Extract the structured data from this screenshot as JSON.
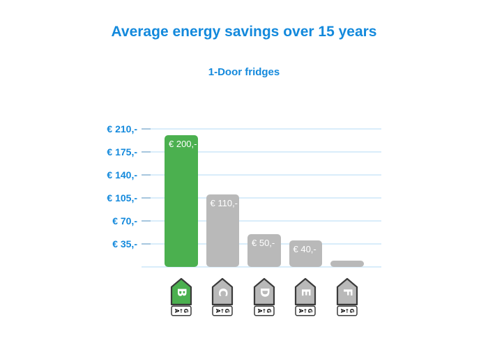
{
  "header": {
    "title": "Average energy savings over 15 years",
    "subtitle": "1-Door fridges"
  },
  "chart_data": {
    "type": "bar",
    "title": "Average energy savings over 15 years",
    "subtitle": "1-Door fridges",
    "categories": [
      "B",
      "C",
      "D",
      "E",
      "F"
    ],
    "values": [
      200,
      110,
      50,
      40,
      10
    ],
    "bar_labels": [
      "€ 200,-",
      "€ 110,-",
      "€ 50,-",
      "€ 40,-",
      ""
    ],
    "bar_colors": [
      "#4bb04f",
      "#b9b9b9",
      "#b9b9b9",
      "#b9b9b9",
      "#b9b9b9"
    ],
    "xlabel": "",
    "ylabel": "",
    "ylim": [
      0,
      210
    ],
    "y_ticks": [
      {
        "value": 210,
        "label": "€ 210,-"
      },
      {
        "value": 175,
        "label": "€ 175,-"
      },
      {
        "value": 140,
        "label": "€ 140,-"
      },
      {
        "value": 105,
        "label": "€ 105,-"
      },
      {
        "value": 70,
        "label": "€ 70,-"
      },
      {
        "value": 35,
        "label": "€ 35,-"
      }
    ],
    "grid": true,
    "legend": false,
    "x_axis_icon_style": "eu-energy-label-arrow",
    "x_axis_icon_scale_text": "A←G"
  },
  "colors": {
    "accent_blue": "#1389dc",
    "grid_line": "#d9edfa",
    "grid_tick": "#a6c6de",
    "bar_green": "#4bb04f",
    "bar_gray": "#b9b9b9",
    "bar_label_text": "#ffffff",
    "icon_outline": "#3a3a3a",
    "icon_scale_text": "#111111",
    "background": "#ffffff"
  }
}
